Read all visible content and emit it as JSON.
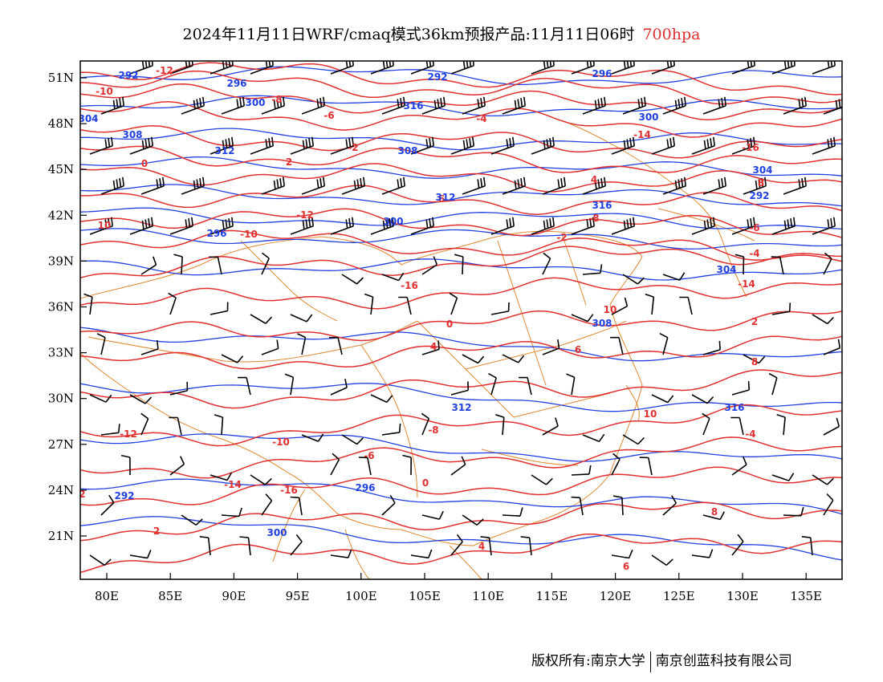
{
  "title": {
    "main": "2024年11月11日WRF/cmaq模式36km预报产品:11月11日06时",
    "level": "700hpa"
  },
  "axes": {
    "lat_labels": [
      "51N",
      "48N",
      "45N",
      "42N",
      "39N",
      "36N",
      "33N",
      "30N",
      "27N",
      "24N",
      "21N"
    ],
    "lon_labels": [
      "80E",
      "85E",
      "90E",
      "95E",
      "100E",
      "105E",
      "110E",
      "115E",
      "120E",
      "125E",
      "130E",
      "135E"
    ]
  },
  "colors": {
    "temperature": "#e03030",
    "height": "#2040e0",
    "boundary": "#e08830",
    "wind": "#000000"
  },
  "contour_labels": {
    "temperature": [
      "-12",
      "-10",
      "-8",
      "-6",
      "-4",
      "-2",
      "-14",
      "-16",
      "0",
      "2",
      "4",
      "6",
      "8",
      "10"
    ],
    "height": [
      "292",
      "296",
      "300",
      "304",
      "308",
      "312",
      "316"
    ]
  },
  "footer": {
    "copyright": "版权所有:南京大学",
    "company": "南京创蓝科技有限公司"
  }
}
